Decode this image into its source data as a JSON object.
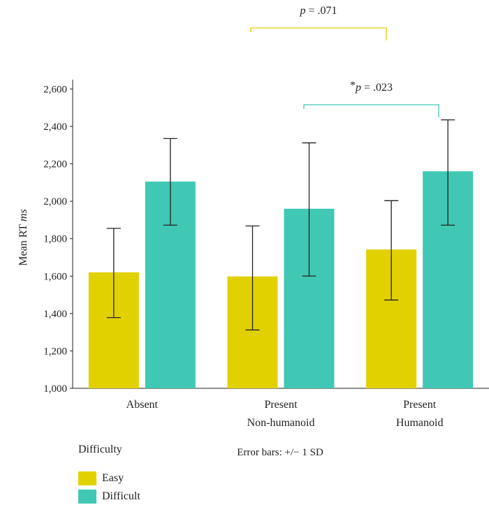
{
  "chart_data": {
    "type": "bar",
    "categories": [
      [
        "Absent"
      ],
      [
        "Present",
        "Non-humanoid"
      ],
      [
        "Present",
        "Humanoid"
      ]
    ],
    "series": [
      {
        "name": "Easy",
        "color": "#E2D100",
        "values": [
          1620,
          1598,
          1742
        ],
        "sd_low": [
          1378,
          1312,
          1472
        ],
        "sd_high": [
          1855,
          1868,
          2003
        ]
      },
      {
        "name": "Difficult",
        "color": "#40C8B4",
        "values": [
          2105,
          1960,
          2160
        ],
        "sd_low": [
          1872,
          1600,
          1872
        ],
        "sd_high": [
          2335,
          2312,
          2435
        ]
      }
    ],
    "ylabel_main": "Mean RT",
    "ylabel_unit": "ms",
    "ylim": [
      1000,
      2650
    ],
    "yticks": [
      1000,
      1200,
      1400,
      1600,
      1800,
      2000,
      2200,
      2400,
      2600
    ],
    "ytick_labels": [
      "1,000",
      "1,200",
      "1,400",
      "1,600",
      "1,800",
      "2,000",
      "2,200",
      "2,400",
      "2,600"
    ],
    "error_note": "Error bars: +/− 1 SD",
    "annotations": [
      {
        "star": "",
        "p": "p",
        "text": " = .071",
        "color": "#E2D100",
        "from_category": 1,
        "to_category": 2
      },
      {
        "star": "*",
        "p": "p",
        "text": " = .023",
        "color": "#40C8B4",
        "from_category": 1,
        "to_category": 2
      }
    ],
    "legend_title": "Difficulty",
    "legend": [
      "Easy",
      "Difficult"
    ]
  }
}
